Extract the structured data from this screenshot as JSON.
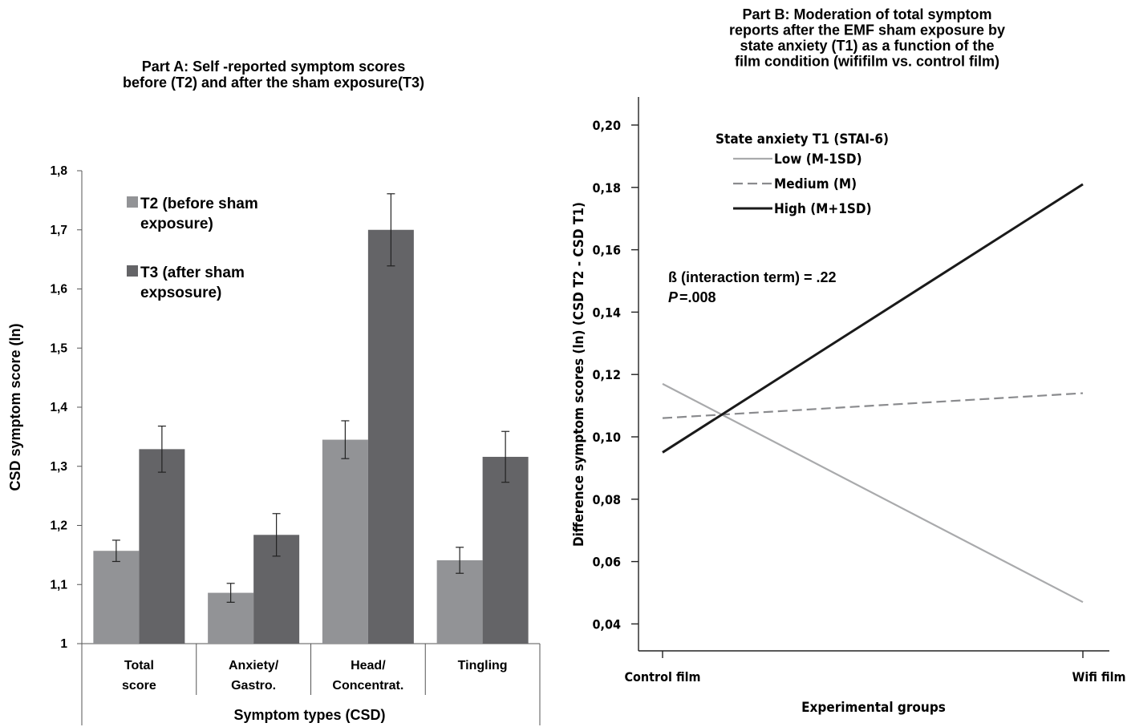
{
  "chart_data": [
    {
      "type": "bar",
      "title_lines": [
        "Part A: Self -reported symptom scores",
        "before (T2) and after the sham exposure(T3)"
      ],
      "xlabel": "Symptom types (CSD)",
      "ylabel": "CSD symptom score (ln)",
      "ylim": [
        1,
        1.8
      ],
      "yticks": [
        "1",
        "1,1",
        "1,2",
        "1,3",
        "1,4",
        "1,5",
        "1,6",
        "1,7",
        "1,8"
      ],
      "categories": [
        [
          "Total",
          "score"
        ],
        [
          "Anxiety/",
          "Gastro."
        ],
        [
          "Head/",
          "Concentrat."
        ],
        [
          "Tingling"
        ]
      ],
      "series": [
        {
          "name_lines": [
            "T2 (before sham",
            "exposure)"
          ],
          "color": "#929396",
          "values": [
            1.157,
            1.086,
            1.345,
            1.141
          ],
          "error": [
            0.018,
            0.016,
            0.032,
            0.022
          ]
        },
        {
          "name_lines": [
            "T3 (after sham",
            "expsosure)"
          ],
          "color": "#646467",
          "values": [
            1.329,
            1.184,
            1.7,
            1.316
          ],
          "error": [
            0.039,
            0.036,
            0.061,
            0.043
          ]
        }
      ],
      "legend_position": "top-left",
      "grid": false
    },
    {
      "type": "line",
      "title_lines": [
        "Part B: Moderation of total symptom",
        "reports after the EMF sham exposure by",
        "state anxiety (T1) as a function of the",
        "film condition (wififilm vs. control film)"
      ],
      "xlabel": "Experimental groups",
      "ylabel": "Difference symptom scores (ln) (CSD T2 - CSD T1)",
      "categories": [
        "Control film",
        "Wifi film"
      ],
      "ylim": [
        0.03,
        0.21
      ],
      "yticks": [
        "0,04",
        "0,06",
        "0,08",
        "0,10",
        "0,12",
        "0,14",
        "0,16",
        "0,18",
        "0,20"
      ],
      "legend_title": "State anxiety T1 (STAI-6)",
      "series": [
        {
          "name": "Low (M-1SD)",
          "values": [
            0.117,
            0.047
          ],
          "color": "#a9aaac",
          "style": "solid"
        },
        {
          "name": "Medium (M)",
          "values": [
            0.106,
            0.114
          ],
          "color": "#8a8b8e",
          "style": "dashed"
        },
        {
          "name": "High (M+1SD)",
          "values": [
            0.095,
            0.181
          ],
          "color": "#1a1a1a",
          "style": "solid"
        }
      ],
      "annotation": {
        "line1": "ß (interaction term) = .22",
        "p_label": "P",
        "p_value": "=.008"
      },
      "legend_position": "top-left",
      "grid": false
    }
  ]
}
